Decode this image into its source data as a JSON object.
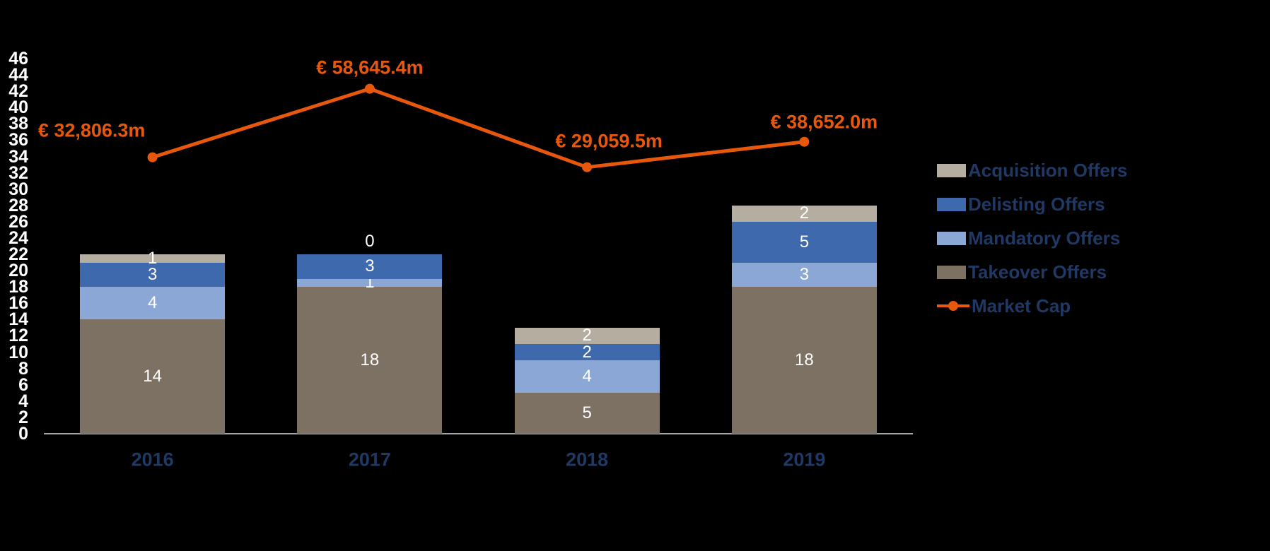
{
  "window": {
    "background": "#000000"
  },
  "chart_data": {
    "type": "combo",
    "bar_type": "stacked-bar",
    "title": "",
    "categories": [
      "2016",
      "2017",
      "2018",
      "2019"
    ],
    "stack_order_bottom_to_top": [
      "Takeover Offers",
      "Mandatory Offers",
      "Delisting Offers",
      "Acquisition Offers"
    ],
    "series": [
      {
        "name": "Takeover Offers",
        "color": "#7D7164",
        "values": [
          14,
          18,
          5,
          18
        ]
      },
      {
        "name": "Mandatory Offers",
        "color": "#8AA7D6",
        "values": [
          4,
          1,
          4,
          3
        ]
      },
      {
        "name": "Delisting Offers",
        "color": "#3E69AC",
        "values": [
          3,
          3,
          2,
          5
        ]
      },
      {
        "name": "Acquisition Offers",
        "color": "#B6ADA1",
        "values": [
          1,
          0,
          2,
          2
        ]
      }
    ],
    "line_series": {
      "name": "Market Cap",
      "color": "#E8580C",
      "values": [
        32806.3,
        58645.4,
        29059.5,
        38652.0
      ],
      "labels": [
        "€ 32,806.3m",
        "€ 58,645.4m",
        "€ 29,059.5m",
        "€ 38,652.0m"
      ]
    },
    "primary_axis": {
      "min": 0,
      "max": 46,
      "step": 2,
      "tick_labels": [
        "0",
        "2",
        "4",
        "6",
        "8",
        "10",
        "12",
        "14",
        "16",
        "18",
        "20",
        "22",
        "24",
        "26",
        "28",
        "30",
        "32",
        "34",
        "36",
        "38",
        "40",
        "42",
        "44",
        "46"
      ],
      "tick_color": "#FFFFFF",
      "axis_line_color": "#A6A6A6",
      "gridlines": false
    },
    "secondary_axis": {
      "visible": false,
      "mapping_to_primary_units": {
        "slope": 0.00032513,
        "intercept": 23.235
      }
    },
    "x_axis": {
      "tick_color": "#1F3864"
    },
    "bar_value_label_color": "#FFFFFF",
    "legend": {
      "position": "right",
      "text_color": "#1F3864",
      "items": [
        {
          "label": "Acquisition Offers",
          "color": "#B6ADA1",
          "type": "swatch"
        },
        {
          "label": "Delisting Offers",
          "color": "#3E69AC",
          "type": "swatch"
        },
        {
          "label": "Mandatory Offers",
          "color": "#8AA7D6",
          "type": "swatch"
        },
        {
          "label": "Takeover Offers",
          "color": "#7D7164",
          "type": "swatch"
        },
        {
          "label": "Market Cap",
          "color": "#E8580C",
          "type": "line-marker"
        }
      ]
    }
  }
}
